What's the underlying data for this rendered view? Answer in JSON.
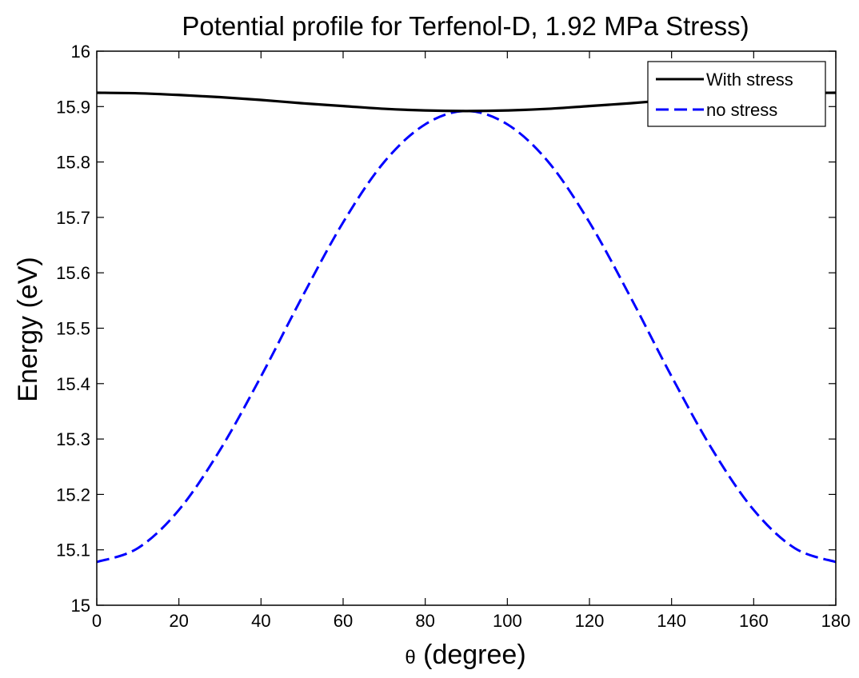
{
  "chart_data": {
    "type": "line",
    "title": "Potential profile for Terfenol-D, 1.92 MPa Stress)",
    "xlabel_symbol": "θ",
    "xlabel_text": " (degree)",
    "ylabel": "Energy (eV)",
    "xlim": [
      0,
      180
    ],
    "ylim": [
      15,
      16
    ],
    "xticks": [
      0,
      20,
      40,
      60,
      80,
      100,
      120,
      140,
      160,
      180
    ],
    "yticks": [
      15,
      15.1,
      15.2,
      15.3,
      15.4,
      15.5,
      15.6,
      15.7,
      15.8,
      15.9,
      16
    ],
    "grid": false,
    "legend_position": "top-right",
    "x": [
      0,
      10,
      20,
      30,
      40,
      50,
      60,
      70,
      80,
      90,
      100,
      110,
      120,
      130,
      140,
      150,
      160,
      170,
      180
    ],
    "series": [
      {
        "name": "With stress",
        "color": "#000000",
        "style": "solid",
        "values": [
          15.925,
          15.924,
          15.921,
          15.917,
          15.912,
          15.906,
          15.901,
          15.896,
          15.893,
          15.892,
          15.893,
          15.896,
          15.901,
          15.906,
          15.912,
          15.917,
          15.921,
          15.924,
          15.925
        ]
      },
      {
        "name": "no stress",
        "color": "#0000ff",
        "style": "dashed",
        "values": [
          15.078,
          15.103,
          15.172,
          15.28,
          15.413,
          15.556,
          15.691,
          15.8,
          15.868,
          15.892,
          15.868,
          15.8,
          15.691,
          15.556,
          15.413,
          15.28,
          15.172,
          15.103,
          15.078
        ]
      }
    ]
  }
}
